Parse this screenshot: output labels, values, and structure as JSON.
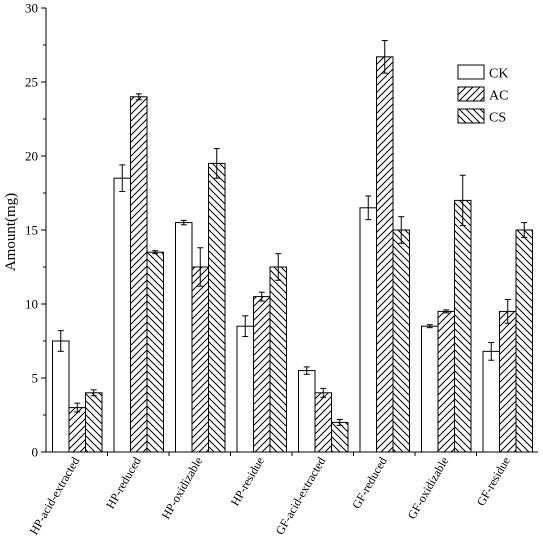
{
  "chart_data": {
    "type": "bar",
    "ylabel": "Amount(mg)",
    "ylim": [
      0,
      30
    ],
    "yticks": [
      "0",
      "5",
      "10",
      "15",
      "20",
      "25",
      "30"
    ],
    "categories": [
      "HP-acid-extracted",
      "HP-reduced",
      "HP-oxidizable",
      "HP-residue",
      "GF-acid-extracted",
      "GF-reduced",
      "GF-oxidizable",
      "GF-residue"
    ],
    "series": [
      {
        "name": "CK",
        "values": [
          7.5,
          18.5,
          15.5,
          8.5,
          5.5,
          16.5,
          8.5,
          6.8
        ],
        "errors": [
          0.7,
          0.9,
          0.15,
          0.7,
          0.25,
          0.8,
          0.1,
          0.6
        ],
        "pattern": "none"
      },
      {
        "name": "AC",
        "values": [
          3.0,
          24.0,
          12.5,
          10.5,
          4.0,
          26.7,
          9.5,
          9.5
        ],
        "errors": [
          0.3,
          0.2,
          1.3,
          0.3,
          0.3,
          1.1,
          0.1,
          0.8
        ],
        "pattern": "forward-diagonal"
      },
      {
        "name": "CS",
        "values": [
          4.0,
          13.5,
          19.5,
          12.5,
          2.0,
          15.0,
          17.0,
          15.0
        ],
        "errors": [
          0.2,
          0.1,
          1.0,
          0.9,
          0.2,
          0.9,
          1.7,
          0.5
        ],
        "pattern": "back-diagonal"
      }
    ],
    "legend_position": "top-right",
    "grid": false
  }
}
